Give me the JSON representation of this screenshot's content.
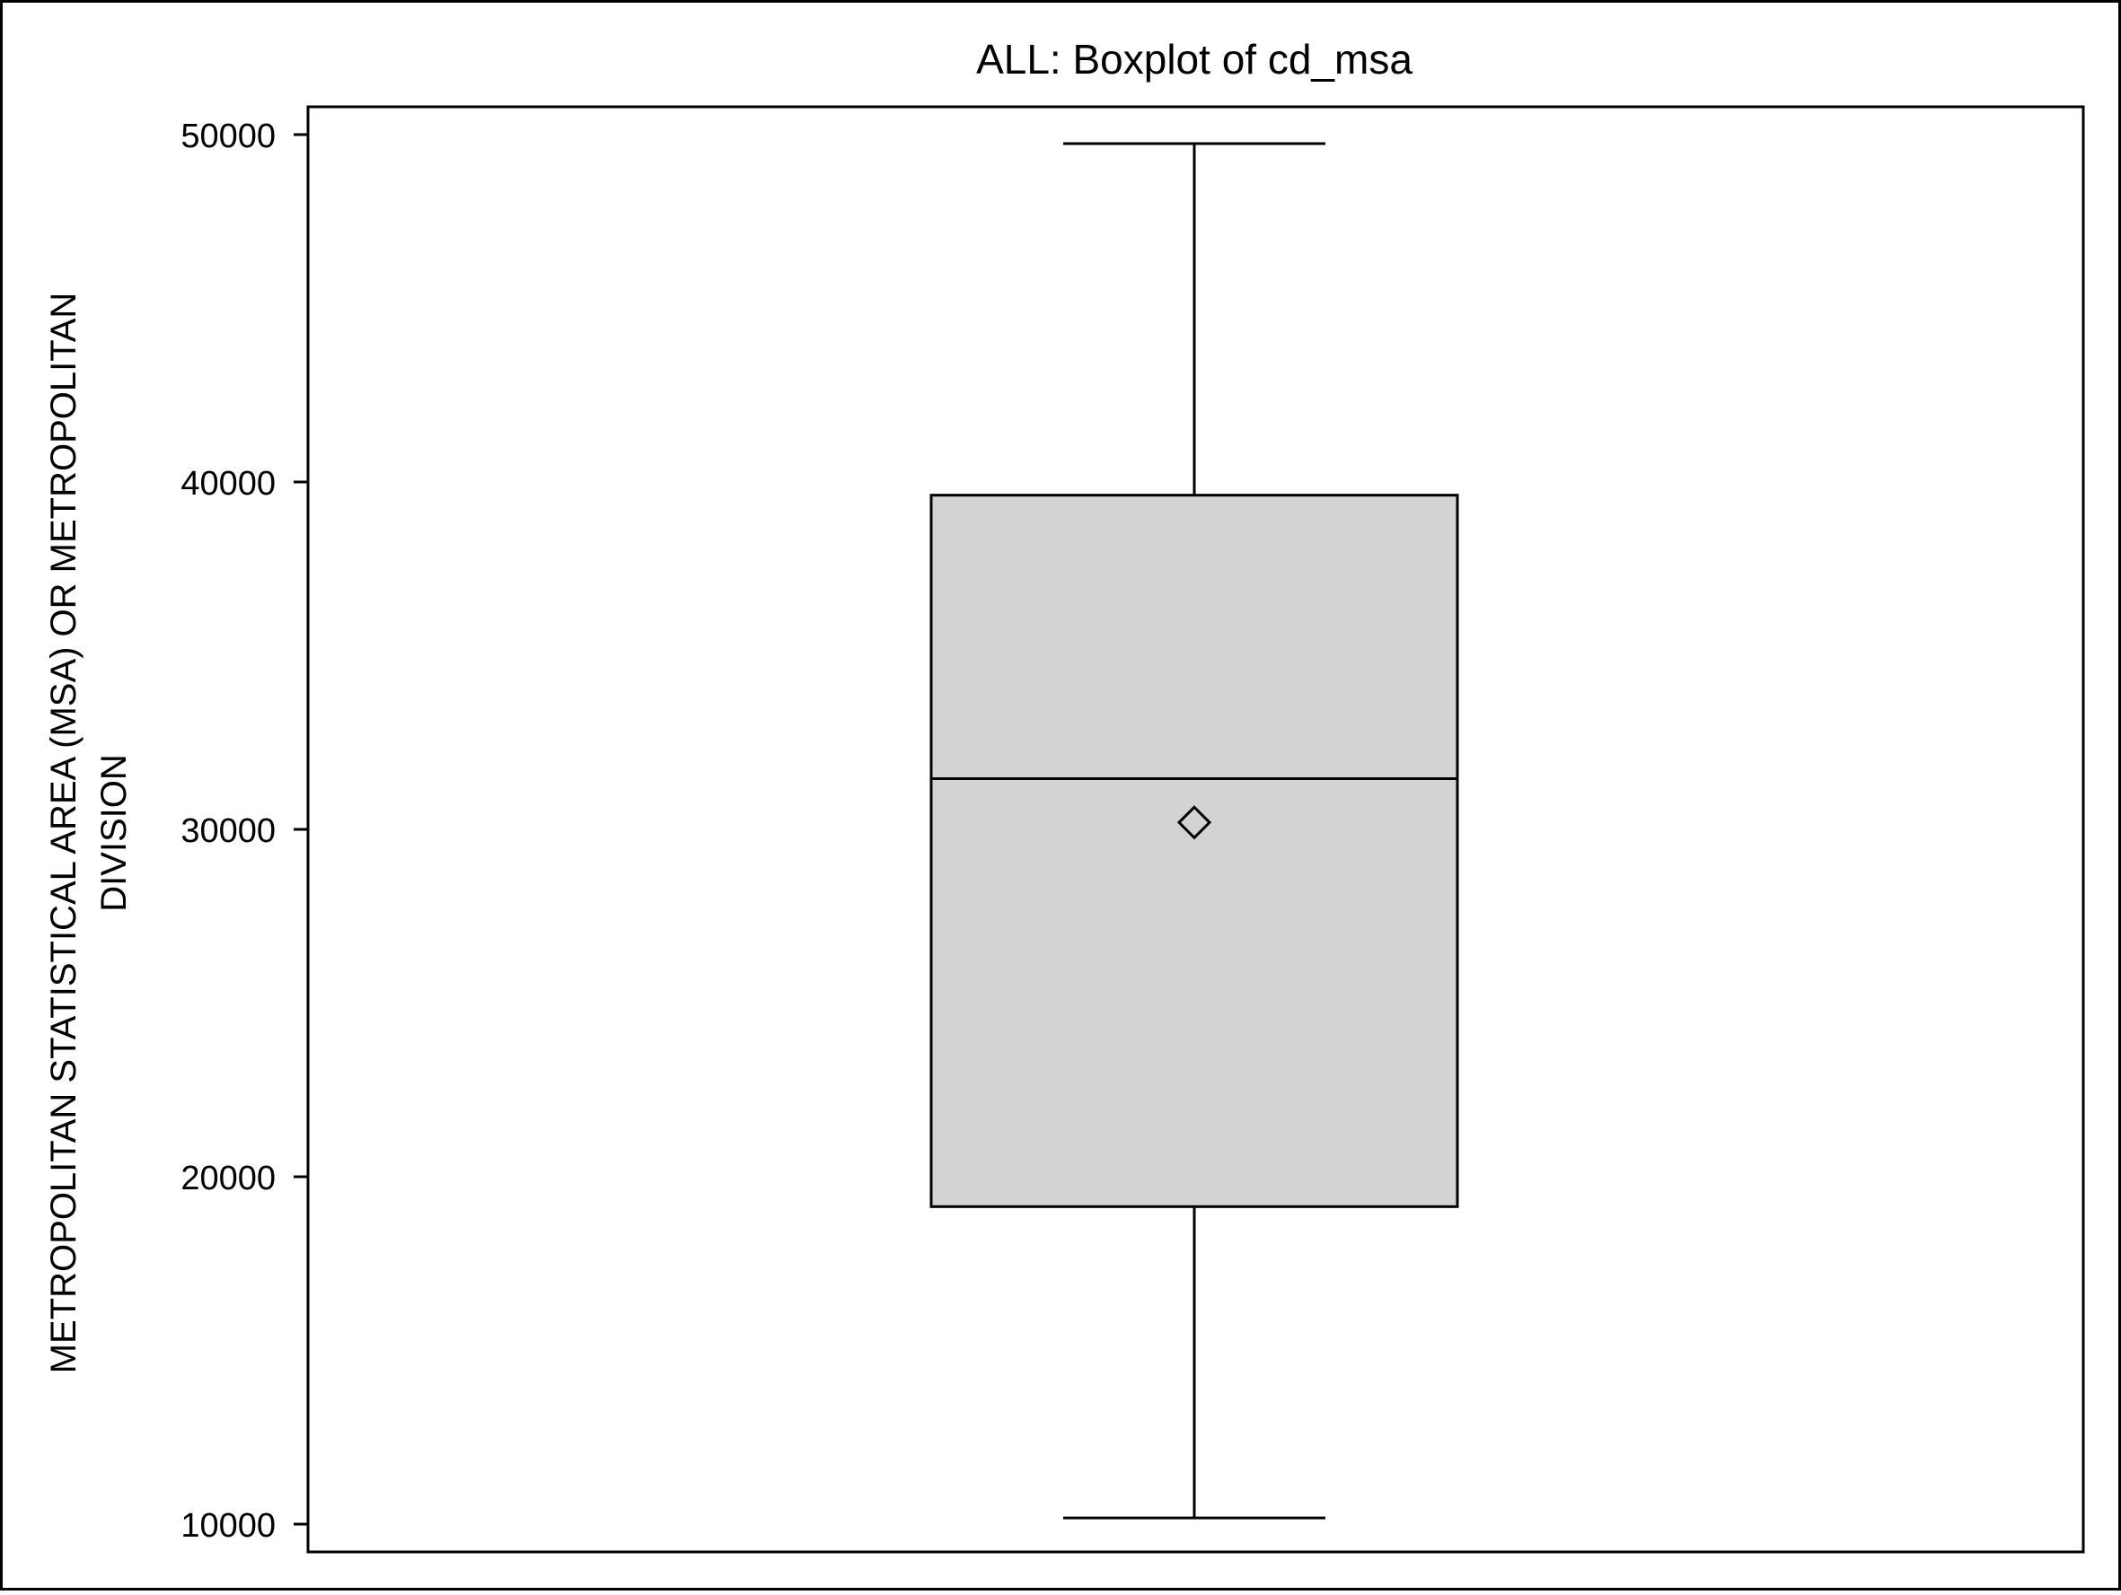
{
  "chart_data": {
    "type": "box",
    "title": "ALL: Boxplot of cd_msa",
    "xlabel": "",
    "ylabel_lines": [
      "METROPOLITAN STATISTICAL AREA (MSA) OR METROPOLITAN",
      "DIVISION"
    ],
    "ylim": [
      9200,
      50800
    ],
    "yticks": [
      10000,
      20000,
      30000,
      40000,
      50000
    ],
    "ytick_labels": [
      "10000",
      "20000",
      "30000",
      "40000",
      "50000"
    ],
    "grid": false,
    "legend": "none",
    "box": {
      "min": 10180,
      "q1": 19140,
      "median": 31460,
      "mean": 30200,
      "q3": 39620,
      "max": 49740
    },
    "colors": {
      "box_fill": "#d3d3d3",
      "stroke": "#000000",
      "background": "#ffffff"
    }
  }
}
